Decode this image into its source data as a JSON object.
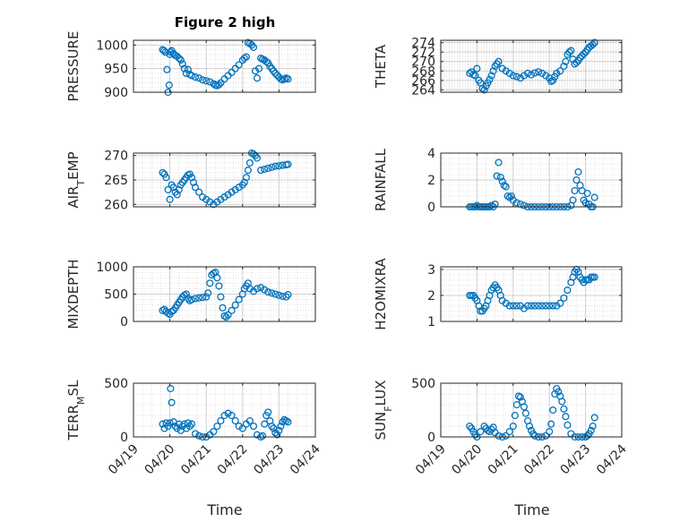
{
  "title": "Figure 2 high",
  "xlabel": "Time",
  "xtick_labels": [
    "04/19",
    "04/20",
    "04/21",
    "04/22",
    "04/23",
    "04/24"
  ],
  "colors": {
    "marker": "#0072BD",
    "axis": "#262626",
    "grid": "#d9d9d9"
  },
  "chart_data": [
    {
      "type": "scatter",
      "name": "PRESSURE",
      "ylabel": "PRESSURE",
      "xlim": [
        0,
        5
      ],
      "ylim": [
        900,
        1010
      ],
      "yticks": [
        900,
        950,
        1000
      ],
      "x": [
        0.8,
        0.84,
        0.88,
        0.92,
        0.95,
        0.98,
        1.0,
        1.02,
        1.05,
        1.1,
        1.15,
        1.2,
        1.25,
        1.3,
        1.35,
        1.4,
        1.45,
        1.5,
        1.55,
        1.6,
        1.7,
        1.8,
        1.9,
        2.0,
        2.1,
        2.2,
        2.25,
        2.3,
        2.35,
        2.4,
        2.5,
        2.6,
        2.7,
        2.8,
        2.9,
        3.0,
        3.05,
        3.1,
        3.15,
        3.2,
        3.25,
        3.3,
        3.35,
        3.4,
        3.45,
        3.5,
        3.55,
        3.6,
        3.65,
        3.7,
        3.75,
        3.8,
        3.85,
        3.9,
        3.95,
        4.0,
        4.05,
        4.1,
        4.15,
        4.2,
        4.25
      ],
      "y": [
        990,
        988,
        985,
        948,
        900,
        915,
        980,
        985,
        988,
        982,
        978,
        976,
        972,
        968,
        960,
        950,
        940,
        948,
        938,
        935,
        932,
        930,
        926,
        924,
        922,
        918,
        915,
        914,
        916,
        920,
        928,
        935,
        942,
        950,
        958,
        968,
        972,
        975,
        1005,
        1003,
        1000,
        995,
        945,
        930,
        950,
        972,
        970,
        968,
        965,
        962,
        955,
        950,
        945,
        940,
        936,
        932,
        928,
        926,
        928,
        930,
        928
      ],
      "ylim_note": ""
    },
    {
      "type": "scatter",
      "name": "THETA",
      "ylabel": "THETA",
      "xlim": [
        0,
        5
      ],
      "ylim": [
        263.5,
        274.5
      ],
      "yticks": [
        264,
        266,
        268,
        270,
        272,
        274
      ],
      "x": [
        0.8,
        0.85,
        0.9,
        0.95,
        1.0,
        1.05,
        1.1,
        1.15,
        1.2,
        1.25,
        1.3,
        1.35,
        1.4,
        1.45,
        1.5,
        1.55,
        1.6,
        1.7,
        1.8,
        1.9,
        2.0,
        2.1,
        2.2,
        2.3,
        2.4,
        2.5,
        2.6,
        2.7,
        2.8,
        2.9,
        3.0,
        3.05,
        3.1,
        3.15,
        3.2,
        3.3,
        3.4,
        3.45,
        3.5,
        3.55,
        3.6,
        3.65,
        3.7,
        3.75,
        3.8,
        3.85,
        3.9,
        3.95,
        4.0,
        4.05,
        4.1,
        4.15,
        4.2,
        4.25
      ],
      "y": [
        267.5,
        267.8,
        267.2,
        267.0,
        268.5,
        266.0,
        265.5,
        264.3,
        264.0,
        264.8,
        265.5,
        266.2,
        267.0,
        268.0,
        269.0,
        269.5,
        270.0,
        268.5,
        268.0,
        267.5,
        267.0,
        266.8,
        266.5,
        267.0,
        267.5,
        267.2,
        267.6,
        267.8,
        267.5,
        267.0,
        266.5,
        265.8,
        266.0,
        266.8,
        267.5,
        268.0,
        269.0,
        270.0,
        271.5,
        272.0,
        272.3,
        270.5,
        269.5,
        269.8,
        270.2,
        270.8,
        271.2,
        271.6,
        272.0,
        272.5,
        273.0,
        273.3,
        273.6,
        274.0
      ]
    },
    {
      "type": "scatter",
      "name": "AIR_TEMP",
      "ylabel": "AIR_TEMP",
      "xlim": [
        0,
        5
      ],
      "ylim": [
        259.5,
        270.5
      ],
      "yticks": [
        260,
        265,
        270
      ],
      "x": [
        0.8,
        0.85,
        0.9,
        0.95,
        1.0,
        1.05,
        1.1,
        1.15,
        1.2,
        1.25,
        1.3,
        1.35,
        1.4,
        1.45,
        1.5,
        1.55,
        1.6,
        1.65,
        1.7,
        1.8,
        1.9,
        2.0,
        2.1,
        2.2,
        2.3,
        2.4,
        2.5,
        2.6,
        2.7,
        2.8,
        2.9,
        3.0,
        3.05,
        3.1,
        3.15,
        3.2,
        3.25,
        3.3,
        3.35,
        3.4,
        3.5,
        3.6,
        3.7,
        3.8,
        3.9,
        4.0,
        4.1,
        4.2,
        4.25
      ],
      "y": [
        266.5,
        266.2,
        265.5,
        263.0,
        261.0,
        264.0,
        263.5,
        262.5,
        262.0,
        263.0,
        264.0,
        264.5,
        265.0,
        265.5,
        266.0,
        266.2,
        265.5,
        264.5,
        263.5,
        262.5,
        261.5,
        261.0,
        260.5,
        260.0,
        260.5,
        261.0,
        261.5,
        262.0,
        262.5,
        263.0,
        263.5,
        264.0,
        264.5,
        265.5,
        267.0,
        268.5,
        270.5,
        270.3,
        270.0,
        269.5,
        267.0,
        267.2,
        267.4,
        267.6,
        267.8,
        267.9,
        268.0,
        268.1,
        268.2
      ]
    },
    {
      "type": "scatter",
      "name": "RAINFALL",
      "ylabel": "RAINFALL",
      "xlim": [
        0,
        5
      ],
      "ylim": [
        0,
        4
      ],
      "yticks": [
        0,
        2,
        4
      ],
      "x": [
        0.8,
        0.85,
        0.9,
        0.95,
        1.0,
        1.05,
        1.1,
        1.15,
        1.2,
        1.25,
        1.3,
        1.35,
        1.4,
        1.45,
        1.5,
        1.55,
        1.6,
        1.65,
        1.7,
        1.75,
        1.8,
        1.85,
        1.9,
        1.95,
        2.0,
        2.1,
        2.2,
        2.3,
        2.4,
        2.5,
        2.6,
        2.7,
        2.8,
        2.9,
        3.0,
        3.1,
        3.2,
        3.3,
        3.4,
        3.5,
        3.6,
        3.65,
        3.7,
        3.75,
        3.8,
        3.85,
        3.9,
        3.95,
        4.0,
        4.05,
        4.1,
        4.15,
        4.2,
        4.25
      ],
      "y": [
        0,
        0,
        0,
        0,
        0.1,
        0,
        0,
        0,
        0,
        0,
        0,
        0,
        0.1,
        0,
        0.2,
        2.3,
        3.3,
        2.2,
        1.9,
        1.6,
        1.5,
        0.8,
        0.7,
        0.8,
        0.5,
        0.3,
        0.2,
        0.1,
        0,
        0,
        0,
        0,
        0,
        0,
        0,
        0,
        0,
        0,
        0,
        0,
        0.1,
        0.5,
        1.2,
        2.0,
        2.6,
        1.6,
        1.2,
        0.5,
        0.3,
        1.0,
        0.2,
        0,
        0,
        0.7
      ]
    },
    {
      "type": "scatter",
      "name": "MIXDEPTH",
      "ylabel": "MIXDEPTH",
      "xlim": [
        0,
        5
      ],
      "ylim": [
        0,
        1000
      ],
      "yticks": [
        0,
        500,
        1000
      ],
      "x": [
        0.8,
        0.85,
        0.9,
        0.95,
        1.0,
        1.05,
        1.1,
        1.15,
        1.2,
        1.25,
        1.3,
        1.35,
        1.4,
        1.45,
        1.5,
        1.55,
        1.6,
        1.7,
        1.8,
        1.9,
        2.0,
        2.05,
        2.1,
        2.15,
        2.2,
        2.25,
        2.3,
        2.35,
        2.4,
        2.45,
        2.5,
        2.55,
        2.6,
        2.7,
        2.8,
        2.9,
        3.0,
        3.05,
        3.1,
        3.15,
        3.2,
        3.3,
        3.4,
        3.5,
        3.6,
        3.7,
        3.8,
        3.9,
        4.0,
        4.1,
        4.2,
        4.25
      ],
      "y": [
        200,
        220,
        180,
        150,
        130,
        180,
        200,
        250,
        300,
        350,
        400,
        450,
        480,
        500,
        420,
        380,
        400,
        420,
        430,
        440,
        450,
        520,
        700,
        850,
        880,
        900,
        800,
        650,
        450,
        250,
        100,
        80,
        120,
        200,
        300,
        400,
        500,
        600,
        650,
        700,
        600,
        550,
        600,
        620,
        580,
        540,
        520,
        500,
        480,
        460,
        450,
        490
      ]
    },
    {
      "type": "scatter",
      "name": "H2OMIXRA",
      "ylabel": "H2OMIXRA",
      "xlim": [
        0,
        5
      ],
      "ylim": [
        1,
        3.1
      ],
      "yticks": [
        1,
        2,
        3
      ],
      "x": [
        0.8,
        0.85,
        0.9,
        0.95,
        1.0,
        1.05,
        1.1,
        1.15,
        1.2,
        1.25,
        1.3,
        1.35,
        1.4,
        1.45,
        1.5,
        1.55,
        1.6,
        1.65,
        1.7,
        1.8,
        1.9,
        2.0,
        2.1,
        2.2,
        2.3,
        2.4,
        2.5,
        2.6,
        2.7,
        2.8,
        2.9,
        3.0,
        3.1,
        3.2,
        3.3,
        3.4,
        3.5,
        3.6,
        3.65,
        3.7,
        3.75,
        3.8,
        3.85,
        3.9,
        3.95,
        4.0,
        4.05,
        4.1,
        4.15,
        4.2,
        4.25
      ],
      "y": [
        2.0,
        2.0,
        2.0,
        1.9,
        1.8,
        1.6,
        1.4,
        1.4,
        1.5,
        1.6,
        1.8,
        2.0,
        2.2,
        2.3,
        2.4,
        2.3,
        2.2,
        2.0,
        1.8,
        1.7,
        1.6,
        1.6,
        1.6,
        1.6,
        1.5,
        1.6,
        1.6,
        1.6,
        1.6,
        1.6,
        1.6,
        1.6,
        1.6,
        1.6,
        1.7,
        1.9,
        2.2,
        2.5,
        2.7,
        2.9,
        3.0,
        2.9,
        2.7,
        2.6,
        2.5,
        2.6,
        2.6,
        2.6,
        2.7,
        2.7,
        2.7
      ]
    },
    {
      "type": "scatter",
      "name": "TERR_MSL",
      "ylabel": "TERR_MSL",
      "xlim": [
        0,
        5
      ],
      "ylim": [
        0,
        500
      ],
      "yticks": [
        0,
        500
      ],
      "x": [
        0.8,
        0.85,
        0.9,
        0.95,
        1.0,
        1.02,
        1.05,
        1.1,
        1.15,
        1.2,
        1.25,
        1.3,
        1.35,
        1.4,
        1.45,
        1.5,
        1.55,
        1.6,
        1.7,
        1.8,
        1.9,
        2.0,
        2.1,
        2.2,
        2.3,
        2.4,
        2.5,
        2.6,
        2.7,
        2.8,
        2.9,
        3.0,
        3.1,
        3.2,
        3.3,
        3.4,
        3.5,
        3.55,
        3.6,
        3.65,
        3.7,
        3.75,
        3.8,
        3.85,
        3.9,
        3.95,
        4.0,
        4.05,
        4.1,
        4.15,
        4.2,
        4.25
      ],
      "y": [
        120,
        80,
        130,
        100,
        130,
        450,
        320,
        140,
        100,
        80,
        120,
        60,
        100,
        120,
        80,
        130,
        100,
        120,
        30,
        10,
        0,
        0,
        20,
        50,
        100,
        150,
        200,
        220,
        200,
        150,
        100,
        80,
        120,
        150,
        100,
        20,
        0,
        10,
        120,
        200,
        230,
        150,
        100,
        80,
        40,
        20,
        60,
        100,
        140,
        160,
        150,
        140
      ]
    },
    {
      "type": "scatter",
      "name": "SUN_FLUX",
      "ylabel": "SUN_FLUX",
      "xlim": [
        0,
        5
      ],
      "ylim": [
        0,
        500
      ],
      "yticks": [
        0,
        500
      ],
      "x": [
        0.8,
        0.85,
        0.9,
        0.95,
        1.0,
        1.1,
        1.2,
        1.25,
        1.3,
        1.35,
        1.4,
        1.45,
        1.5,
        1.6,
        1.7,
        1.8,
        1.9,
        2.0,
        2.05,
        2.1,
        2.15,
        2.2,
        2.25,
        2.3,
        2.35,
        2.4,
        2.45,
        2.5,
        2.55,
        2.6,
        2.7,
        2.8,
        2.9,
        3.0,
        3.05,
        3.1,
        3.15,
        3.2,
        3.25,
        3.3,
        3.35,
        3.4,
        3.45,
        3.5,
        3.6,
        3.7,
        3.8,
        3.9,
        4.0,
        4.05,
        4.1,
        4.15,
        4.2,
        4.25
      ],
      "y": [
        100,
        80,
        50,
        20,
        0,
        50,
        100,
        80,
        60,
        50,
        70,
        90,
        40,
        10,
        0,
        10,
        50,
        100,
        200,
        300,
        380,
        370,
        330,
        280,
        220,
        150,
        100,
        60,
        30,
        10,
        0,
        0,
        10,
        50,
        120,
        250,
        400,
        450,
        420,
        380,
        330,
        260,
        190,
        110,
        30,
        0,
        0,
        0,
        0,
        10,
        30,
        60,
        100,
        180
      ]
    }
  ]
}
